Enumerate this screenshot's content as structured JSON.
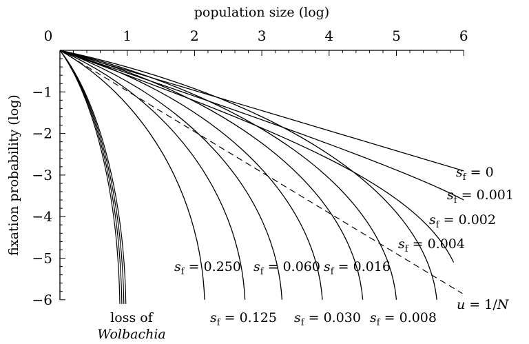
{
  "chart_data": {
    "type": "line",
    "xlabel": "population size (log)",
    "ylabel": "fixation probability (log)",
    "xlim": [
      0,
      6
    ],
    "ylim": [
      -6,
      0
    ],
    "x_ticks": [
      "0",
      "1",
      "2",
      "3",
      "4",
      "5",
      "6"
    ],
    "y_ticks": [
      "−1",
      "−2",
      "−3",
      "−4",
      "−5",
      "−6"
    ],
    "x_axis_position": "top",
    "grid": false,
    "series": [
      {
        "name": "s_f = 0",
        "sf": "0",
        "x_end": 6.0,
        "y_end": -2.9
      },
      {
        "name": "s_f = 0.001",
        "sf": "0.001",
        "x_end": 6.0,
        "y_end": -3.6
      },
      {
        "name": "s_f = 0.002",
        "sf": "0.002",
        "x_end": 5.85,
        "y_end": -5.1
      },
      {
        "name": "s_f = 0.004",
        "sf": "0.004",
        "x_end": 5.6,
        "y_end": -6.0
      },
      {
        "name": "s_f = 0.008",
        "sf": "0.008",
        "x_end": 5.0,
        "y_end": -6.0
      },
      {
        "name": "s_f = 0.016",
        "sf": "0.016",
        "x_end": 4.5,
        "y_end": -6.0
      },
      {
        "name": "s_f = 0.030",
        "sf": "0.030",
        "x_end": 3.9,
        "y_end": -6.0
      },
      {
        "name": "s_f = 0.060",
        "sf": "0.060",
        "x_end": 3.3,
        "y_end": -6.0
      },
      {
        "name": "s_f = 0.125",
        "sf": "0.125",
        "x_end": 2.75,
        "y_end": -6.0
      },
      {
        "name": "s_f = 0.250",
        "sf": "0.250",
        "x_end": 2.15,
        "y_end": -6.0
      }
    ],
    "loss_bundle_x_end": [
      0.89,
      0.92,
      0.95,
      0.98
    ],
    "reference_line": {
      "name": "u = 1/N",
      "style": "dashed",
      "x": [
        0,
        6
      ],
      "y": [
        0,
        -6
      ]
    },
    "annotations": {
      "loss_line1": "loss of",
      "loss_line2": "Wolbachia",
      "ref_u": "u",
      "ref_eq": " = 1/",
      "ref_N": "N"
    }
  }
}
